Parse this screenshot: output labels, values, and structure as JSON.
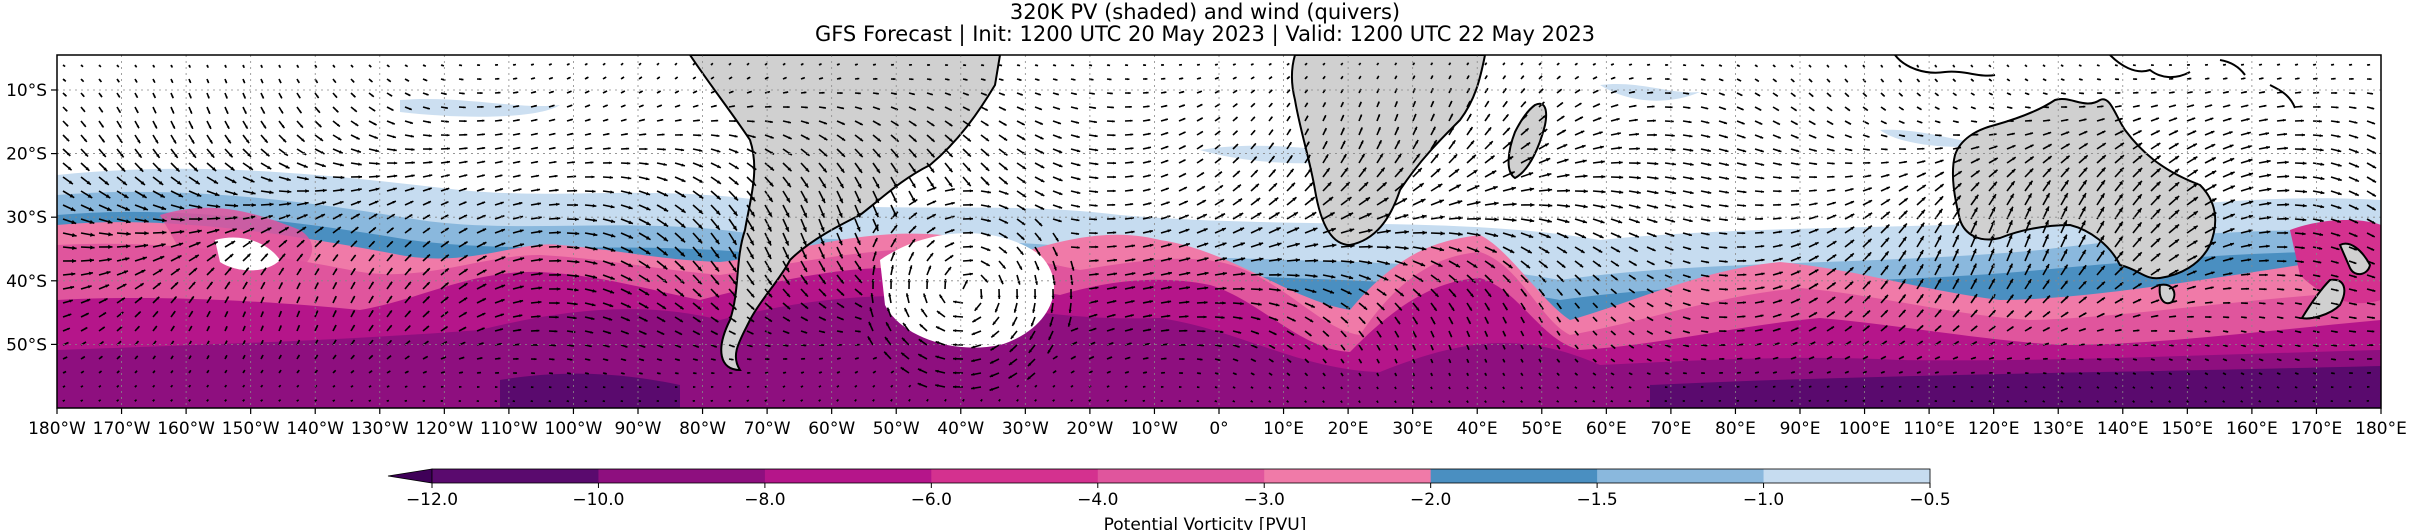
{
  "figure": {
    "title_line1": "320K PV (shaded) and wind (quivers)",
    "title_line2": "GFS Forecast | Init: 1200 UTC 20 May 2023 | Valid: 1200 UTC 22 May 2023"
  },
  "axes": {
    "lon_ticks": [
      "180°W",
      "170°W",
      "160°W",
      "150°W",
      "140°W",
      "130°W",
      "120°W",
      "110°W",
      "100°W",
      "90°W",
      "80°W",
      "70°W",
      "60°W",
      "50°W",
      "40°W",
      "30°W",
      "20°W",
      "10°W",
      "0°",
      "10°E",
      "20°E",
      "30°E",
      "40°E",
      "50°E",
      "60°E",
      "70°E",
      "80°E",
      "90°E",
      "100°E",
      "110°E",
      "120°E",
      "130°E",
      "140°E",
      "150°E",
      "160°E",
      "170°E",
      "180°E"
    ],
    "lat_ticks": [
      {
        "label": "10°S",
        "lat": -10
      },
      {
        "label": "20°S",
        "lat": -20
      },
      {
        "label": "30°S",
        "lat": -30
      },
      {
        "label": "40°S",
        "lat": -40
      },
      {
        "label": "50°S",
        "lat": -50
      }
    ],
    "lon_range": [
      -180,
      180
    ],
    "lat_range": [
      -60,
      -4.5
    ],
    "gridlines": true
  },
  "colorbar": {
    "label": "Potential Vorticity [PVU]",
    "extend": "min",
    "ticks": [
      "−12.0",
      "−10.0",
      "−8.0",
      "−6.0",
      "−4.0",
      "−3.0",
      "−2.0",
      "−1.5",
      "−1.0",
      "−0.5"
    ],
    "colors": [
      "#5a0a6e",
      "#8e0f7f",
      "#b5158a",
      "#d4318f",
      "#e0559d",
      "#f07aa8",
      "#4a8fc1",
      "#8ab8dd",
      "#c6dcf0"
    ],
    "extend_color": "#3f0058"
  },
  "colors": {
    "land": "#d0d0d0",
    "coast": "#000000",
    "arrow": "#000000"
  }
}
